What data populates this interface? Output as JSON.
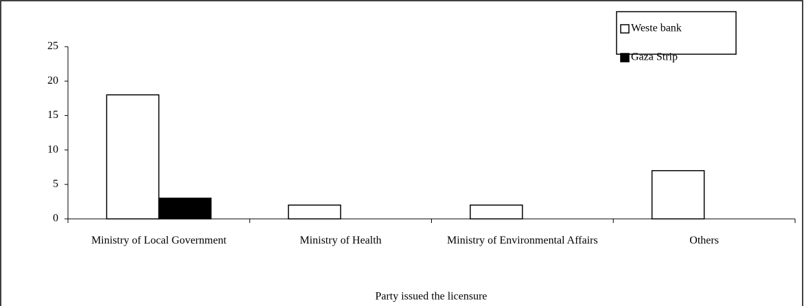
{
  "chart_data": {
    "type": "bar",
    "xlabel": "Party issued the licensure",
    "categories": [
      "Ministry of Local Government",
      "Ministry of Health",
      "Ministry of Environmental Affairs",
      "Others"
    ],
    "series": [
      {
        "name": "Weste bank",
        "color": "#ffffff",
        "values": [
          18,
          2,
          2,
          7
        ]
      },
      {
        "name": "Gaza Strip",
        "color": "#000000",
        "values": [
          3,
          0,
          0,
          0
        ]
      }
    ],
    "ylim": [
      0,
      25
    ],
    "yticks": [
      0,
      5,
      10,
      15,
      20,
      25
    ],
    "legend": "upper right"
  }
}
